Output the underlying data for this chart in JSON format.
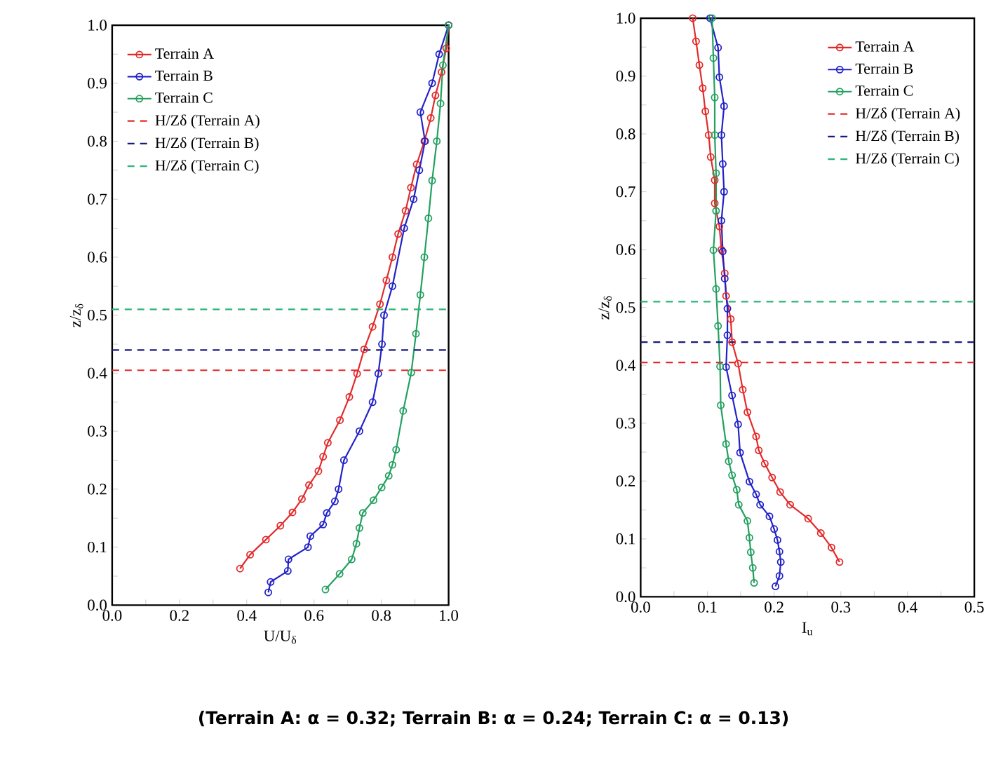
{
  "chart_data": [
    {
      "type": "line",
      "xlabel": "U/U$_{δ}$",
      "ylabel": "z/z$_{δ}$",
      "xlim": [
        0,
        1
      ],
      "ylim": [
        0,
        1
      ],
      "xticks": [
        {
          "value": 0,
          "label": "0.0"
        },
        {
          "value": 0.1,
          "label": null
        },
        {
          "value": 0.2,
          "label": "0.2"
        },
        {
          "value": 0.3,
          "label": null
        },
        {
          "value": 0.4,
          "label": "0.4"
        },
        {
          "value": 0.5,
          "label": null
        },
        {
          "value": 0.6,
          "label": "0.6"
        },
        {
          "value": 0.7,
          "label": null
        },
        {
          "value": 0.8,
          "label": "0.8"
        },
        {
          "value": 0.9,
          "label": null
        },
        {
          "value": 1,
          "label": "1.0"
        }
      ],
      "yticks": [
        {
          "value": 0,
          "label": "0.0"
        },
        {
          "value": 0.05,
          "label": null
        },
        {
          "value": 0.1,
          "label": "0.1"
        },
        {
          "value": 0.15,
          "label": null
        },
        {
          "value": 0.2,
          "label": "0.2"
        },
        {
          "value": 0.25,
          "label": null
        },
        {
          "value": 0.3,
          "label": "0.3"
        },
        {
          "value": 0.35,
          "label": null
        },
        {
          "value": 0.4,
          "label": "0.4"
        },
        {
          "value": 0.45,
          "label": null
        },
        {
          "value": 0.5,
          "label": "0.5"
        },
        {
          "value": 0.55,
          "label": null
        },
        {
          "value": 0.6,
          "label": "0.6"
        },
        {
          "value": 0.65,
          "label": null
        },
        {
          "value": 0.7,
          "label": "0.7"
        },
        {
          "value": 0.75,
          "label": null
        },
        {
          "value": 0.8,
          "label": "0.8"
        },
        {
          "value": 0.85,
          "label": null
        },
        {
          "value": 0.9,
          "label": "0.9"
        },
        {
          "value": 0.95,
          "label": null
        },
        {
          "value": 1,
          "label": "1.0"
        }
      ],
      "marker": "circle",
      "line_style": "solid",
      "legend": "top left",
      "series": [
        {
          "name": "Terrain A",
          "color": "#e32a2a",
          "x": [
            0.38,
            0.41,
            0.457,
            0.5,
            0.536,
            0.564,
            0.585,
            0.613,
            0.627,
            0.641,
            0.677,
            0.705,
            0.728,
            0.749,
            0.774,
            0.796,
            0.815,
            0.833,
            0.85,
            0.872,
            0.888,
            0.905,
            0.928,
            0.947,
            0.961,
            0.979,
            0.993,
            1.0
          ],
          "values": [
            0.063,
            0.087,
            0.113,
            0.137,
            0.16,
            0.183,
            0.207,
            0.231,
            0.256,
            0.28,
            0.319,
            0.359,
            0.399,
            0.441,
            0.48,
            0.519,
            0.56,
            0.6,
            0.64,
            0.68,
            0.72,
            0.76,
            0.8,
            0.84,
            0.879,
            0.919,
            0.96,
            1.0
          ]
        },
        {
          "name": "Terrain B",
          "color": "#2222c8",
          "x": [
            0.464,
            0.471,
            0.522,
            0.524,
            0.582,
            0.589,
            0.627,
            0.638,
            0.662,
            0.673,
            0.689,
            0.735,
            0.774,
            0.791,
            0.802,
            0.808,
            0.833,
            0.868,
            0.896,
            0.913,
            0.93,
            0.916,
            0.951,
            0.972,
            1.0
          ],
          "values": [
            0.022,
            0.04,
            0.059,
            0.079,
            0.1,
            0.119,
            0.139,
            0.159,
            0.179,
            0.2,
            0.25,
            0.3,
            0.35,
            0.399,
            0.45,
            0.5,
            0.55,
            0.65,
            0.7,
            0.75,
            0.8,
            0.85,
            0.9,
            0.95,
            1.0
          ]
        },
        {
          "name": "Terrain C",
          "color": "#23a060",
          "x": [
            0.634,
            0.676,
            0.712,
            0.726,
            0.735,
            0.745,
            0.777,
            0.801,
            0.822,
            0.833,
            0.844,
            0.865,
            0.889,
            0.903,
            0.916,
            0.928,
            0.94,
            0.951,
            0.965,
            0.976,
            0.983,
            1.0
          ],
          "values": [
            0.027,
            0.054,
            0.079,
            0.106,
            0.133,
            0.159,
            0.181,
            0.203,
            0.223,
            0.242,
            0.268,
            0.335,
            0.401,
            0.468,
            0.535,
            0.6,
            0.667,
            0.732,
            0.8,
            0.865,
            0.931,
            1.0
          ]
        }
      ],
      "ref_lines": [
        {
          "axis": "y",
          "value": 0.405,
          "label": "H/Zδ (Terrain A)",
          "color": "#e32a2a",
          "line_style": "dashed"
        },
        {
          "axis": "y",
          "value": 0.44,
          "label": "H/Zδ (Terrain B)",
          "color": "#1a1a80",
          "line_style": "dashed"
        },
        {
          "axis": "y",
          "value": 0.51,
          "label": "H/Zδ (Terrain C)",
          "color": "#2db37a",
          "line_style": "dashed"
        }
      ],
      "annotations": [
        "(Terrain A: α = 0.32; Terrain B: α = 0.24; Terrain C: α = 0.13)"
      ]
    },
    {
      "type": "line",
      "xlabel": "I$_{u}$",
      "ylabel": "z/z$_{δ}$",
      "xlim": [
        0,
        0.5
      ],
      "ylim": [
        0,
        1
      ],
      "xticks": [
        {
          "value": 0,
          "label": "0.0"
        },
        {
          "value": 0.05,
          "label": null
        },
        {
          "value": 0.1,
          "label": "0.1"
        },
        {
          "value": 0.15,
          "label": null
        },
        {
          "value": 0.2,
          "label": "0.2"
        },
        {
          "value": 0.25,
          "label": null
        },
        {
          "value": 0.3,
          "label": "0.3"
        },
        {
          "value": 0.35,
          "label": null
        },
        {
          "value": 0.4,
          "label": "0.4"
        },
        {
          "value": 0.45,
          "label": null
        },
        {
          "value": 0.5,
          "label": "0.5"
        }
      ],
      "yticks": [
        {
          "value": 0,
          "label": "0.0"
        },
        {
          "value": 0.05,
          "label": null
        },
        {
          "value": 0.1,
          "label": "0.1"
        },
        {
          "value": 0.15,
          "label": null
        },
        {
          "value": 0.2,
          "label": "0.2"
        },
        {
          "value": 0.25,
          "label": null
        },
        {
          "value": 0.3,
          "label": "0.3"
        },
        {
          "value": 0.35,
          "label": null
        },
        {
          "value": 0.4,
          "label": "0.4"
        },
        {
          "value": 0.45,
          "label": null
        },
        {
          "value": 0.5,
          "label": "0.5"
        },
        {
          "value": 0.55,
          "label": null
        },
        {
          "value": 0.6,
          "label": "0.6"
        },
        {
          "value": 0.65,
          "label": null
        },
        {
          "value": 0.7,
          "label": "0.7"
        },
        {
          "value": 0.75,
          "label": null
        },
        {
          "value": 0.8,
          "label": "0.8"
        },
        {
          "value": 0.85,
          "label": null
        },
        {
          "value": 0.9,
          "label": "0.9"
        },
        {
          "value": 0.95,
          "label": null
        },
        {
          "value": 1,
          "label": "1.0"
        }
      ],
      "marker": "circle",
      "line_style": "solid",
      "legend": "top right",
      "series": [
        {
          "name": "Terrain A",
          "color": "#e32a2a",
          "x": [
            0.298,
            0.286,
            0.27,
            0.251,
            0.224,
            0.209,
            0.197,
            0.186,
            0.177,
            0.173,
            0.16,
            0.153,
            0.146,
            0.137,
            0.135,
            0.128,
            0.126,
            0.121,
            0.118,
            0.111,
            0.111,
            0.105,
            0.102,
            0.097,
            0.093,
            0.088,
            0.083,
            0.078
          ],
          "values": [
            0.06,
            0.085,
            0.11,
            0.135,
            0.159,
            0.181,
            0.206,
            0.23,
            0.253,
            0.277,
            0.319,
            0.358,
            0.403,
            0.44,
            0.48,
            0.52,
            0.559,
            0.6,
            0.64,
            0.68,
            0.72,
            0.76,
            0.798,
            0.839,
            0.879,
            0.919,
            0.96,
            1.0
          ]
        },
        {
          "name": "Terrain B",
          "color": "#2222c8",
          "x": [
            0.202,
            0.208,
            0.21,
            0.208,
            0.205,
            0.2,
            0.193,
            0.179,
            0.173,
            0.163,
            0.149,
            0.146,
            0.137,
            0.128,
            0.13,
            0.13,
            0.126,
            0.123,
            0.121,
            0.125,
            0.123,
            0.121,
            0.125,
            0.118,
            0.116,
            0.104
          ],
          "values": [
            0.018,
            0.036,
            0.06,
            0.078,
            0.098,
            0.117,
            0.139,
            0.159,
            0.177,
            0.199,
            0.249,
            0.298,
            0.348,
            0.397,
            0.452,
            0.498,
            0.55,
            0.597,
            0.65,
            0.7,
            0.748,
            0.798,
            0.848,
            0.898,
            0.949,
            1.0
          ]
        },
        {
          "name": "Terrain C",
          "color": "#23a060",
          "x": [
            0.17,
            0.168,
            0.165,
            0.163,
            0.16,
            0.147,
            0.144,
            0.137,
            0.132,
            0.128,
            0.12,
            0.119,
            0.116,
            0.113,
            0.109,
            0.113,
            0.113,
            0.111,
            0.111,
            0.109,
            0.107
          ],
          "values": [
            0.024,
            0.05,
            0.077,
            0.102,
            0.131,
            0.159,
            0.185,
            0.21,
            0.234,
            0.264,
            0.331,
            0.398,
            0.468,
            0.532,
            0.599,
            0.667,
            0.732,
            0.798,
            0.863,
            0.931,
            1.0
          ]
        }
      ],
      "ref_lines": [
        {
          "axis": "y",
          "value": 0.405,
          "label": "H/Zδ (Terrain A)",
          "color": "#e32a2a",
          "line_style": "dashed"
        },
        {
          "axis": "y",
          "value": 0.44,
          "label": "H/Zδ (Terrain B)",
          "color": "#1a1a80",
          "line_style": "dashed"
        },
        {
          "axis": "y",
          "value": 0.51,
          "label": "H/Zδ (Terrain C)",
          "color": "#2db37a",
          "line_style": "dashed"
        }
      ]
    }
  ]
}
